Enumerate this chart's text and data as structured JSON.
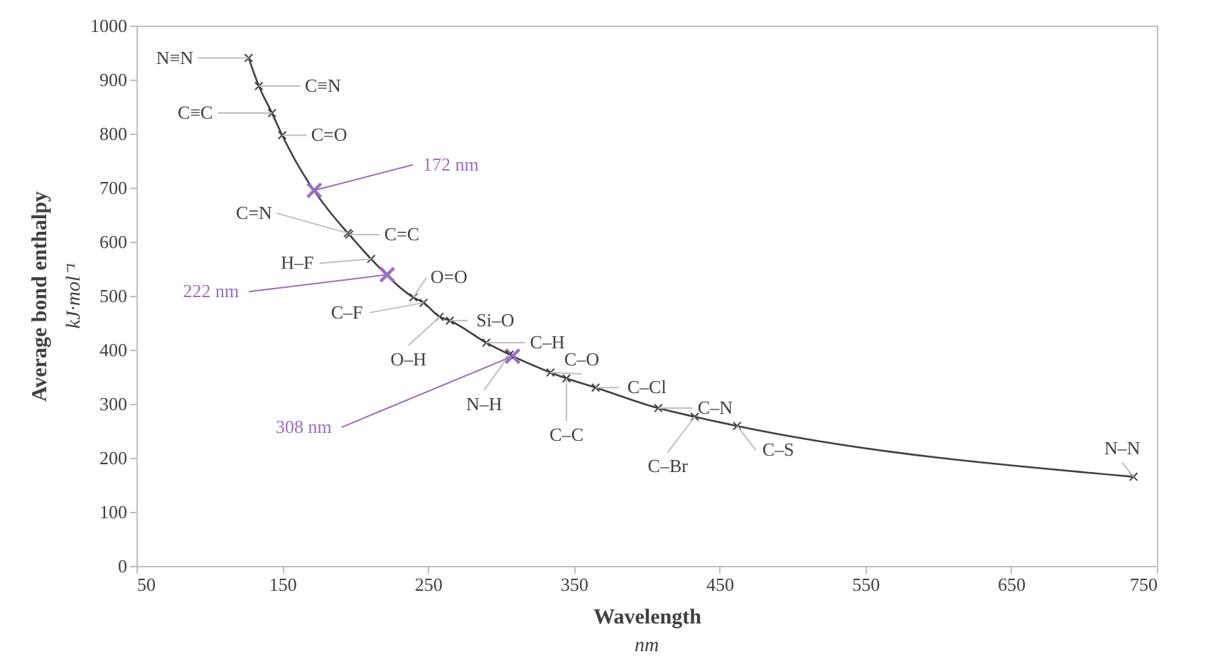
{
  "chart_data": {
    "type": "line",
    "xlabel": "Wavelength",
    "ylabel": "Average bond enthalpy",
    "xlim": [
      50,
      750
    ],
    "xticks": [
      50,
      150,
      250,
      350,
      450,
      550,
      650,
      750
    ],
    "ylim": [
      0,
      1000
    ],
    "yticks": [
      0,
      100,
      200,
      300,
      400,
      500,
      600,
      700,
      800,
      900,
      1000
    ],
    "grid": false,
    "series": [
      {
        "marker": "cross",
        "color": "#404040",
        "x": [
          127,
          134,
          143,
          150,
          195,
          196,
          211,
          240,
          247,
          258,
          265,
          290,
          306,
          334,
          345,
          365,
          408,
          433,
          462,
          734
        ],
        "values": [
          940,
          888,
          838,
          797,
          616,
          613,
          568,
          497,
          487,
          461,
          454,
          413,
          391,
          358,
          347,
          330,
          292,
          276,
          259,
          165
        ]
      },
      {
        "type": "scatter",
        "marker": "cross",
        "color": "#9b6fc0",
        "x": [
          172,
          222,
          308
        ],
        "values": [
          695,
          539,
          388
        ]
      }
    ],
    "annotations": [
      {
        "text": "N≡N",
        "x": 127,
        "y": 940
      },
      {
        "text": "C≡N",
        "x": 134,
        "y": 888
      },
      {
        "text": "C≡C",
        "x": 143,
        "y": 838
      },
      {
        "text": "C=O",
        "x": 150,
        "y": 797
      },
      {
        "text": "C=N",
        "x": 195,
        "y": 616
      },
      {
        "text": "C=C",
        "x": 196,
        "y": 613
      },
      {
        "text": "H–F",
        "x": 211,
        "y": 568
      },
      {
        "text": "O=O",
        "x": 240,
        "y": 497
      },
      {
        "text": "C–F",
        "x": 247,
        "y": 487
      },
      {
        "text": "O–H",
        "x": 258,
        "y": 461
      },
      {
        "text": "Si–O",
        "x": 265,
        "y": 454
      },
      {
        "text": "C–H",
        "x": 290,
        "y": 413
      },
      {
        "text": "N–H",
        "x": 306,
        "y": 391
      },
      {
        "text": "C–O",
        "x": 334,
        "y": 358
      },
      {
        "text": "C–C",
        "x": 345,
        "y": 347
      },
      {
        "text": "C–Cl",
        "x": 365,
        "y": 330
      },
      {
        "text": "C–N",
        "x": 408,
        "y": 292
      },
      {
        "text": "C–Br",
        "x": 433,
        "y": 276
      },
      {
        "text": "C–S",
        "x": 462,
        "y": 259
      },
      {
        "text": "N–N",
        "x": 734,
        "y": 165
      },
      {
        "text": "172 nm",
        "x": 172,
        "y": 695
      },
      {
        "text": "222 nm",
        "x": 222,
        "y": 539
      },
      {
        "text": "308 nm",
        "x": 308,
        "y": 388
      },
      "nm",
      "kJ·mol⁻¹"
    ]
  }
}
